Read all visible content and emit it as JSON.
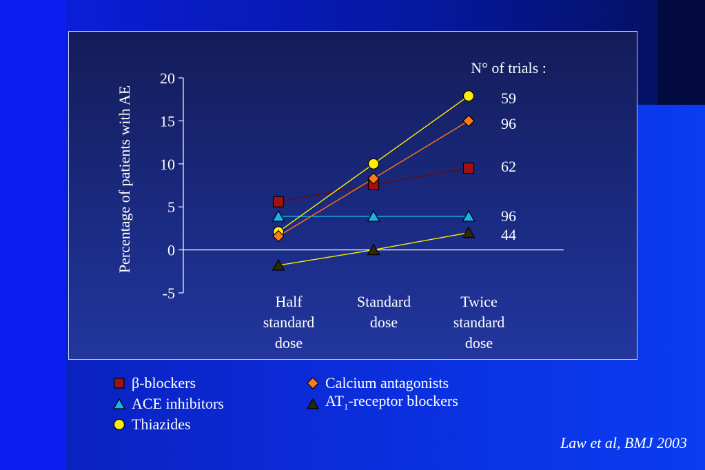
{
  "colors": {
    "beta": "#a01212",
    "ace": "#1ab4e8",
    "thiazide": "#ffee00",
    "calcium": "#ff7a1a",
    "at1": "#2a2a00"
  },
  "chart_data": {
    "type": "line",
    "ylabel": "Percentage of patients with AE",
    "ylim": [
      -5,
      20
    ],
    "yticks": [
      -5,
      0,
      5,
      10,
      15,
      20
    ],
    "grid": false,
    "categories": [
      "Half standard dose",
      "Standard dose",
      "Twice standard dose"
    ],
    "category_lines": [
      [
        "Half",
        "standard",
        "dose"
      ],
      [
        "Standard",
        "dose"
      ],
      [
        "Twice",
        "standard",
        "dose"
      ]
    ],
    "trials_header": "N° of trials :",
    "series": [
      {
        "key": "beta",
        "name": "β-blockers",
        "marker": "square",
        "values": [
          5.6,
          7.6,
          9.5
        ],
        "trials": "62",
        "line_color": "#6a0a0a"
      },
      {
        "key": "ace",
        "name": "ACE inhibitors",
        "marker": "triangle",
        "values": [
          3.9,
          3.9,
          3.9
        ],
        "trials": "96",
        "line_color": "#1ab4e8"
      },
      {
        "key": "thiazide",
        "name": "Thiazides",
        "marker": "circle",
        "values": [
          2.1,
          10.0,
          17.9
        ],
        "trials": "59",
        "line_color": "#ffee00"
      },
      {
        "key": "calcium",
        "name": "Calcium antagonists",
        "marker": "diamond",
        "values": [
          1.6,
          8.3,
          15.0
        ],
        "trials": "96",
        "line_color": "#ff7a1a"
      },
      {
        "key": "at1",
        "name": "AT1-receptor blockers",
        "marker": "triangle",
        "values": [
          -1.8,
          0.0,
          2.0
        ],
        "trials": "44",
        "line_color": "#ffee00"
      }
    ]
  },
  "legend": {
    "col1": [
      {
        "key": "beta",
        "marker": "square",
        "text": "β-blockers"
      },
      {
        "key": "ace",
        "marker": "triangle",
        "text": "ACE inhibitors"
      },
      {
        "key": "thiazide",
        "marker": "circle",
        "text": "Thiazides"
      }
    ],
    "col2": [
      {
        "key": "calcium",
        "marker": "diamond",
        "text": "Calcium antagonists"
      },
      {
        "key": "at1",
        "marker": "triangle",
        "text_pre": "AT",
        "text_sub": "1",
        "text_post": "-receptor blockers"
      }
    ]
  },
  "citation": "Law et al, BMJ 2003"
}
